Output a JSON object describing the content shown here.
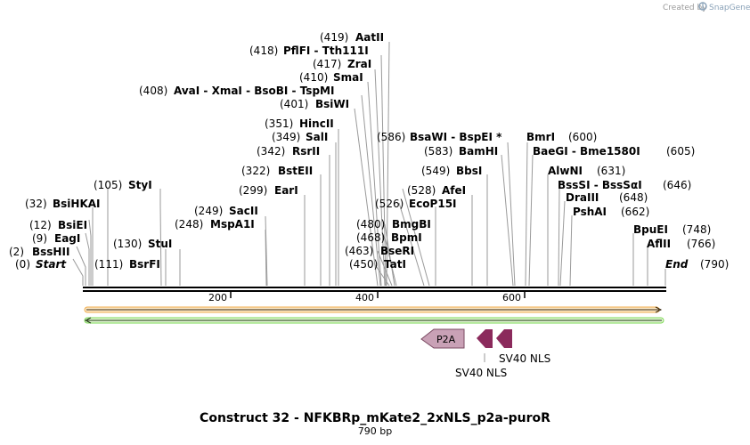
{
  "credit": {
    "prefix": "Created by",
    "brand": "SnapGene"
  },
  "sequence": {
    "length": 790,
    "ticks": [
      200,
      400,
      600
    ]
  },
  "sites": [
    {
      "id": "start",
      "name": "Start",
      "pos": "(0)",
      "italic": true
    },
    {
      "id": "bsshii",
      "name": "BssHII",
      "pos": "(2)"
    },
    {
      "id": "eagi",
      "name": "EagI",
      "pos": "(9)"
    },
    {
      "id": "bsiei",
      "name": "BsiEI",
      "pos": "(12)"
    },
    {
      "id": "bsihkai",
      "name": "BsiHKAI",
      "pos": "(32)"
    },
    {
      "id": "styi",
      "name": "StyI",
      "pos": "(105)"
    },
    {
      "id": "bsrfi",
      "name": "BsrFI",
      "pos": "(111)"
    },
    {
      "id": "stui",
      "name": "StuI",
      "pos": "(130)"
    },
    {
      "id": "mspa1i",
      "name": "MspA1I",
      "pos": "(248)"
    },
    {
      "id": "sacii",
      "name": "SacII",
      "pos": "(249)"
    },
    {
      "id": "eari",
      "name": "EarI",
      "pos": "(299)"
    },
    {
      "id": "bsteii",
      "name": "BstEII",
      "pos": "(322)"
    },
    {
      "id": "rsrii",
      "name": "RsrII",
      "pos": "(342)"
    },
    {
      "id": "sali",
      "name": "SalI",
      "pos": "(349)"
    },
    {
      "id": "hincii",
      "name": "HincII",
      "pos": "(351)"
    },
    {
      "id": "bsiwi",
      "name": "BsiWI",
      "pos": "(401)"
    },
    {
      "id": "avai",
      "name": "AvaI  - XmaI  - BsoBI  - TspMI",
      "pos": "(408)"
    },
    {
      "id": "smai",
      "name": "SmaI",
      "pos": "(410)"
    },
    {
      "id": "zrai",
      "name": "ZraI",
      "pos": "(417)"
    },
    {
      "id": "pflfi",
      "name": "PflFI  - Tth111I",
      "pos": "(418)"
    },
    {
      "id": "aatii",
      "name": "AatII",
      "pos": "(419)"
    },
    {
      "id": "tati",
      "name": "TatI",
      "pos": "(450)"
    },
    {
      "id": "bseri",
      "name": "BseRI",
      "pos": "(463)"
    },
    {
      "id": "bpmi",
      "name": "BpmI",
      "pos": "(468)"
    },
    {
      "id": "bmgbi",
      "name": "BmgBI",
      "pos": "(480)"
    },
    {
      "id": "ecop15i",
      "name": "EcoP15I",
      "pos": "(526)"
    },
    {
      "id": "afei",
      "name": "AfeI",
      "pos": "(528)"
    },
    {
      "id": "bbsi",
      "name": "BbsI",
      "pos": "(549)"
    },
    {
      "id": "bamhi",
      "name": "BamHI",
      "pos": "(583)"
    },
    {
      "id": "bsawi",
      "name": "BsaWI  - BspEI *",
      "pos": "(586)"
    },
    {
      "id": "bmri",
      "name": "BmrI",
      "pos": "(600)"
    },
    {
      "id": "baegi",
      "name": "BaeGI  - Bme1580I",
      "pos": "(605)"
    },
    {
      "id": "alwni",
      "name": "AlwNI",
      "pos": "(631)"
    },
    {
      "id": "bsssi",
      "name": "BssSI  - BssSαI",
      "pos": "(646)"
    },
    {
      "id": "draiii",
      "name": "DraIII",
      "pos": "(648)"
    },
    {
      "id": "pshai",
      "name": "PshAI",
      "pos": "(662)"
    },
    {
      "id": "bpuei",
      "name": "BpuEI",
      "pos": "(748)"
    },
    {
      "id": "aflii",
      "name": "AflII",
      "pos": "(766)"
    },
    {
      "id": "end",
      "name": "End",
      "pos": "(790)",
      "italic": true
    }
  ],
  "features": [
    {
      "id": "p2a",
      "label": "P2A",
      "color": "#c9a1b6"
    },
    {
      "id": "sv40a",
      "label": "SV40 NLS",
      "color": "#8b2a5c"
    },
    {
      "id": "sv40b",
      "label": "SV40 NLS",
      "color": "#8b2a5c"
    }
  ],
  "colors": {
    "orange_feature": "#f0ad4e",
    "green_feature": "#7ed957"
  },
  "title": "Construct 32 - NFKBRp_mKate2_2xNLS_p2a-puroR",
  "subtitle": "790 bp"
}
